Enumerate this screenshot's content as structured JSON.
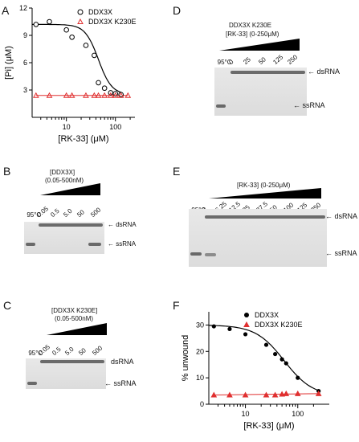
{
  "panels": {
    "A": "A",
    "B": "B",
    "C": "C",
    "D": "D",
    "E": "E",
    "F": "F"
  },
  "chart_A": {
    "type": "scatter",
    "ylabel": "[Pi] (μM)",
    "xlabel": "[RK-33] (μM)",
    "yticks": [
      "3",
      "6",
      "9",
      "12"
    ],
    "xticks": [
      "10",
      "100"
    ],
    "xscale": "log",
    "xlim": [
      2,
      250
    ],
    "ylim": [
      0,
      12
    ],
    "legend": [
      "DDX3X",
      "DDX3X K230E"
    ],
    "series": [
      {
        "name": "DDX3X",
        "x": [
          2.4,
          4.5,
          10,
          13,
          25,
          37,
          45,
          60,
          80,
          100,
          130
        ],
        "y": [
          10.2,
          10.5,
          9.6,
          8.8,
          7.9,
          6.8,
          3.8,
          3.2,
          2.7,
          2.6,
          2.5
        ]
      },
      {
        "name": "DDX3X K230E",
        "x": [
          2.4,
          4.5,
          10,
          13,
          25,
          37,
          45,
          60,
          80,
          100,
          130,
          180
        ],
        "y": [
          2.4,
          2.4,
          2.4,
          2.4,
          2.4,
          2.4,
          2.4,
          2.4,
          2.4,
          2.4,
          2.4,
          2.4
        ]
      }
    ],
    "colors": {
      "DDX3X": "#000000",
      "DDX3X K230E": "#e03030"
    }
  },
  "gel_B": {
    "title": "[DDX3X]",
    "range": "(0.05-500nM)",
    "lanes": [
      "95°C",
      "0.05",
      "0.5",
      "5.0",
      "50",
      "500"
    ],
    "bands": [
      "dsRNA",
      "ssRNA"
    ]
  },
  "gel_C": {
    "title": "[DDX3X K230E]",
    "range": "(0.05-500nM)",
    "lanes": [
      "95°C",
      "0.05",
      "0.5",
      "5.0",
      "50",
      "500"
    ],
    "bands": [
      "dsRNA",
      "ssRNA"
    ]
  },
  "gel_D": {
    "title": "DDX3X K230E",
    "range": "[RK-33] (0-250μM)",
    "lanes": [
      "95°C",
      "0",
      "25",
      "50",
      "125",
      "250"
    ],
    "bands": [
      "dsRNA",
      "ssRNA"
    ]
  },
  "gel_E": {
    "range": "[RK-33] (0-250μM)",
    "lanes": [
      "95°C",
      "0",
      "6.25",
      "12.5",
      "25",
      "37.5",
      "50",
      "100",
      "125",
      "250"
    ],
    "bands": [
      "dsRNA",
      "ssRNA"
    ]
  },
  "chart_F": {
    "type": "scatter",
    "ylabel": "% unwound",
    "xlabel": "[RK-33] (μM)",
    "yticks": [
      "0",
      "10",
      "20",
      "30"
    ],
    "xticks": [
      "10",
      "100"
    ],
    "xscale": "log",
    "xlim": [
      2,
      400
    ],
    "ylim": [
      0,
      35
    ],
    "legend": [
      "DDX3X",
      "DDX3X K230E"
    ],
    "series": [
      {
        "name": "DDX3X",
        "x": [
          2.5,
          5,
          10,
          25,
          37,
          50,
          60,
          100,
          250
        ],
        "y": [
          29.5,
          28.5,
          26.5,
          22.5,
          19,
          17,
          15.5,
          10,
          5
        ]
      },
      {
        "name": "DDX3X K230E",
        "x": [
          2.5,
          5,
          10,
          25,
          37,
          50,
          60,
          100,
          250
        ],
        "y": [
          3.5,
          3.5,
          3.5,
          3.5,
          3.5,
          3.8,
          4,
          4,
          4
        ]
      }
    ],
    "colors": {
      "DDX3X": "#000000",
      "DDX3X K230E": "#e03030"
    }
  }
}
